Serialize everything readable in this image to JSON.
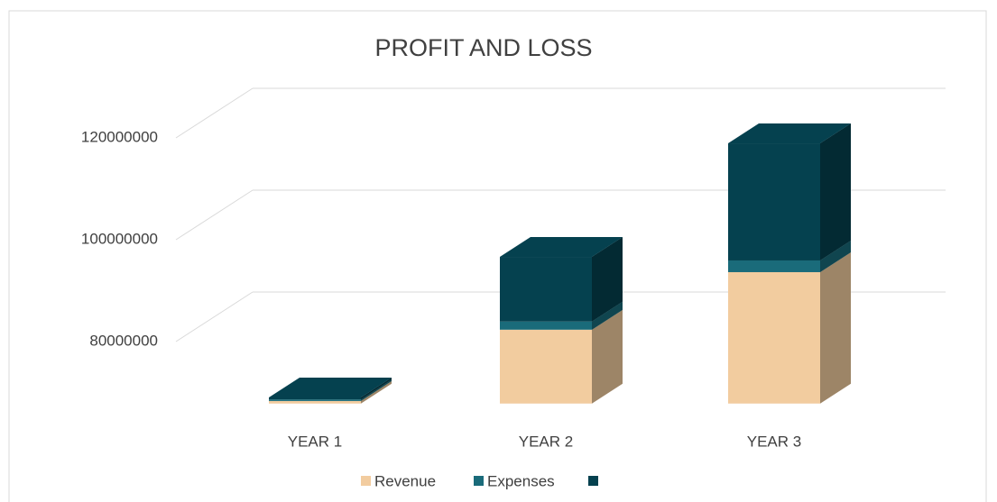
{
  "chart_data": {
    "type": "bar3d_stacked",
    "title": "PROFIT AND LOSS",
    "categories": [
      "YEAR 1",
      "YEAR 2",
      "YEAR 3"
    ],
    "series": [
      {
        "name": "Revenue",
        "color": "#f2cc9f",
        "values": [
          65500000,
          79500000,
          90800000
        ]
      },
      {
        "name": "Expenses",
        "color": "#1a6b7a",
        "values": [
          300000,
          1600000,
          2300000
        ]
      },
      {
        "name": null,
        "color": "#05414f",
        "values": [
          400000,
          12700000,
          23000000
        ]
      }
    ],
    "ylim": [
      65000000,
      120000000
    ],
    "yticks": [
      80000000,
      100000000,
      120000000
    ],
    "grid": true,
    "legend": "bottom"
  }
}
